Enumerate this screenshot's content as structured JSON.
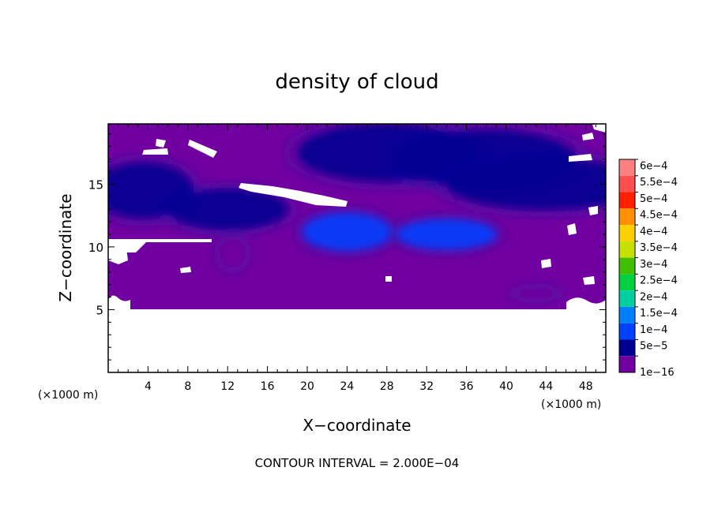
{
  "chart_data": {
    "type": "heatmap",
    "title": "density of cloud",
    "xlabel": "X−coordinate",
    "ylabel": "Z−coordinate",
    "x_unit": "(×1000 m)",
    "y_unit": "(×1000 m)",
    "xlim": [
      0,
      50
    ],
    "ylim": [
      0,
      19.8
    ],
    "x_ticks": [
      4,
      8,
      12,
      16,
      20,
      24,
      28,
      32,
      36,
      40,
      44,
      48
    ],
    "y_ticks": [
      5,
      10,
      15
    ],
    "footer": "CONTOUR INTERVAL = 2.000E−04",
    "colorbar": {
      "levels": [
        "6e−4",
        "5.5e−4",
        "5e−4",
        "4.5e−4",
        "4e−4",
        "3.5e−4",
        "3e−4",
        "2.5e−4",
        "2e−4",
        "1.5e−4",
        "1e−4",
        "5e−5",
        "1e−16"
      ],
      "colors": [
        "#ff8080",
        "#ff5050",
        "#ff2000",
        "#ff9000",
        "#ffd000",
        "#c8e000",
        "#40c000",
        "#00d040",
        "#00d0a0",
        "#0080ff",
        "#0040ff",
        "#000090",
        "#7000a0"
      ]
    },
    "background_color": "#7000a0",
    "cloud_cells": [
      {
        "x": 28,
        "z": 17.5,
        "value": 8e-05
      },
      {
        "x": 38,
        "z": 17.0,
        "value": 7e-05
      },
      {
        "x": 44,
        "z": 15.0,
        "value": 8e-05
      },
      {
        "x": 3.5,
        "z": 14.5,
        "value": 9e-05
      },
      {
        "x": 12,
        "z": 13.0,
        "value": 7e-05
      },
      {
        "x": 24,
        "z": 11.2,
        "value": 0.00013
      },
      {
        "x": 34,
        "z": 11.0,
        "value": 0.00011
      },
      {
        "x": 12.5,
        "z": 9.5,
        "value": 4e-05
      },
      {
        "x": 43,
        "z": 6.3,
        "value": 3e-05
      }
    ]
  }
}
